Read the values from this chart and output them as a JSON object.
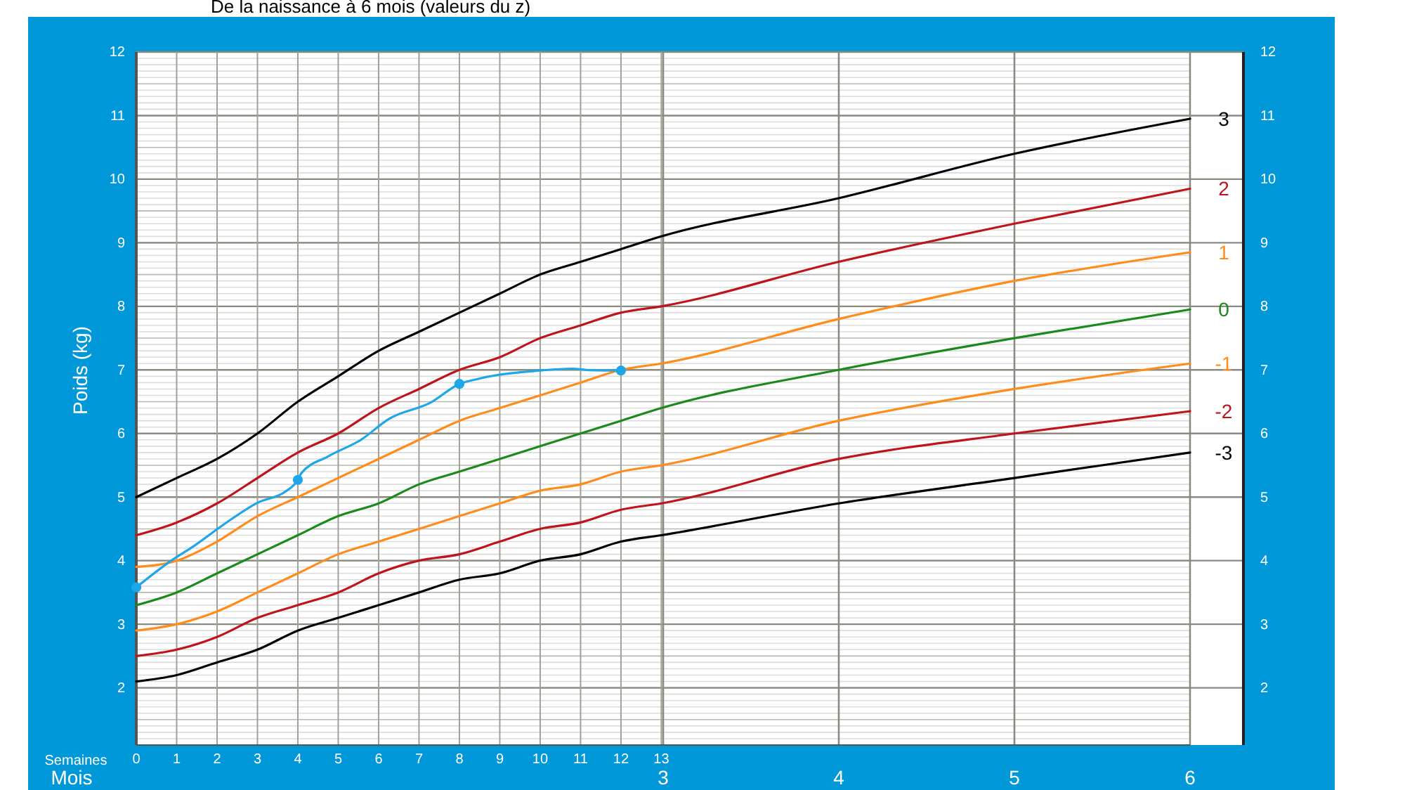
{
  "chart_data": {
    "type": "line",
    "title": "De la naissance à 6 mois (valeurs du z)",
    "xlabel": "Semaines",
    "x2label": "Mois",
    "ylabel": "Poids (kg)",
    "xlim": [
      0,
      26.09
    ],
    "xticks": [
      0,
      1,
      2,
      3,
      4,
      5,
      6,
      7,
      8,
      9,
      10,
      11,
      12,
      13
    ],
    "x2lim": [
      0,
      6
    ],
    "x2ticks": [
      3,
      4,
      5,
      6
    ],
    "ylim": [
      1.1,
      12
    ],
    "yticks": [
      2,
      3,
      4,
      5,
      6,
      7,
      8,
      9,
      10,
      11,
      12
    ],
    "y2lim": [
      1.1,
      12
    ],
    "y2ticks": [
      2,
      3,
      4,
      5,
      6,
      7,
      8,
      9,
      10,
      11,
      12
    ],
    "grid": true,
    "marker": "none",
    "line_style": "solid",
    "x": [
      0,
      1,
      2,
      3,
      4,
      5,
      6,
      7,
      8,
      9,
      10,
      11,
      12,
      13,
      17.39,
      21.74,
      26.09
    ],
    "series": [
      {
        "name": "3",
        "color": "#000000",
        "values": [
          5.0,
          5.3,
          5.6,
          6.0,
          6.5,
          6.9,
          7.3,
          7.6,
          7.9,
          8.2,
          8.5,
          8.7,
          8.9,
          9.1,
          9.7,
          10.4,
          10.95
        ]
      },
      {
        "name": "2",
        "color": "#c0141c",
        "values": [
          4.4,
          4.6,
          4.9,
          5.3,
          5.7,
          6.0,
          6.4,
          6.7,
          7.0,
          7.2,
          7.5,
          7.7,
          7.9,
          8.0,
          8.7,
          9.3,
          9.85
        ]
      },
      {
        "name": "1",
        "color": "#ff8c1a",
        "values": [
          3.9,
          4.0,
          4.3,
          4.7,
          5.0,
          5.3,
          5.6,
          5.9,
          6.2,
          6.4,
          6.6,
          6.8,
          7.0,
          7.1,
          7.8,
          8.4,
          8.85
        ]
      },
      {
        "name": "0",
        "color": "#1a8a1a",
        "values": [
          3.3,
          3.5,
          3.8,
          4.1,
          4.4,
          4.7,
          4.9,
          5.2,
          5.4,
          5.6,
          5.8,
          6.0,
          6.2,
          6.4,
          7.0,
          7.5,
          7.95
        ]
      },
      {
        "name": "-1",
        "color": "#ff8c1a",
        "values": [
          2.9,
          3.0,
          3.2,
          3.5,
          3.8,
          4.1,
          4.3,
          4.5,
          4.7,
          4.9,
          5.1,
          5.2,
          5.4,
          5.5,
          6.2,
          6.7,
          7.1
        ]
      },
      {
        "name": "-2",
        "color": "#c0141c",
        "values": [
          2.5,
          2.6,
          2.8,
          3.1,
          3.3,
          3.5,
          3.8,
          4.0,
          4.1,
          4.3,
          4.5,
          4.6,
          4.8,
          4.9,
          5.6,
          6.0,
          6.35
        ]
      },
      {
        "name": "-3",
        "color": "#000000",
        "values": [
          2.1,
          2.2,
          2.4,
          2.6,
          2.9,
          3.1,
          3.3,
          3.5,
          3.7,
          3.8,
          4.0,
          4.1,
          4.3,
          4.4,
          4.9,
          5.3,
          5.7
        ]
      },
      {
        "color": "#1ea7e8",
        "x": [
          0,
          0.91,
          1.38,
          2.19,
          3.0,
          3.7,
          4.0,
          4.08,
          4.75,
          5.56,
          6.26,
          7.3,
          8.0,
          8.47,
          9.98,
          10.8,
          11.14,
          11.98
        ],
        "values": [
          3.58,
          4.02,
          4.21,
          4.58,
          4.91,
          5.09,
          5.27,
          5.37,
          5.64,
          5.9,
          6.23,
          6.49,
          6.78,
          6.86,
          6.99,
          7.02,
          7.0,
          6.99
        ]
      },
      {
        "type": "scatter",
        "marker": "circle",
        "color": "#1ea7e8",
        "x": [
          0,
          4,
          8,
          12
        ],
        "values": [
          3.58,
          5.27,
          6.78,
          6.99
        ]
      }
    ]
  }
}
